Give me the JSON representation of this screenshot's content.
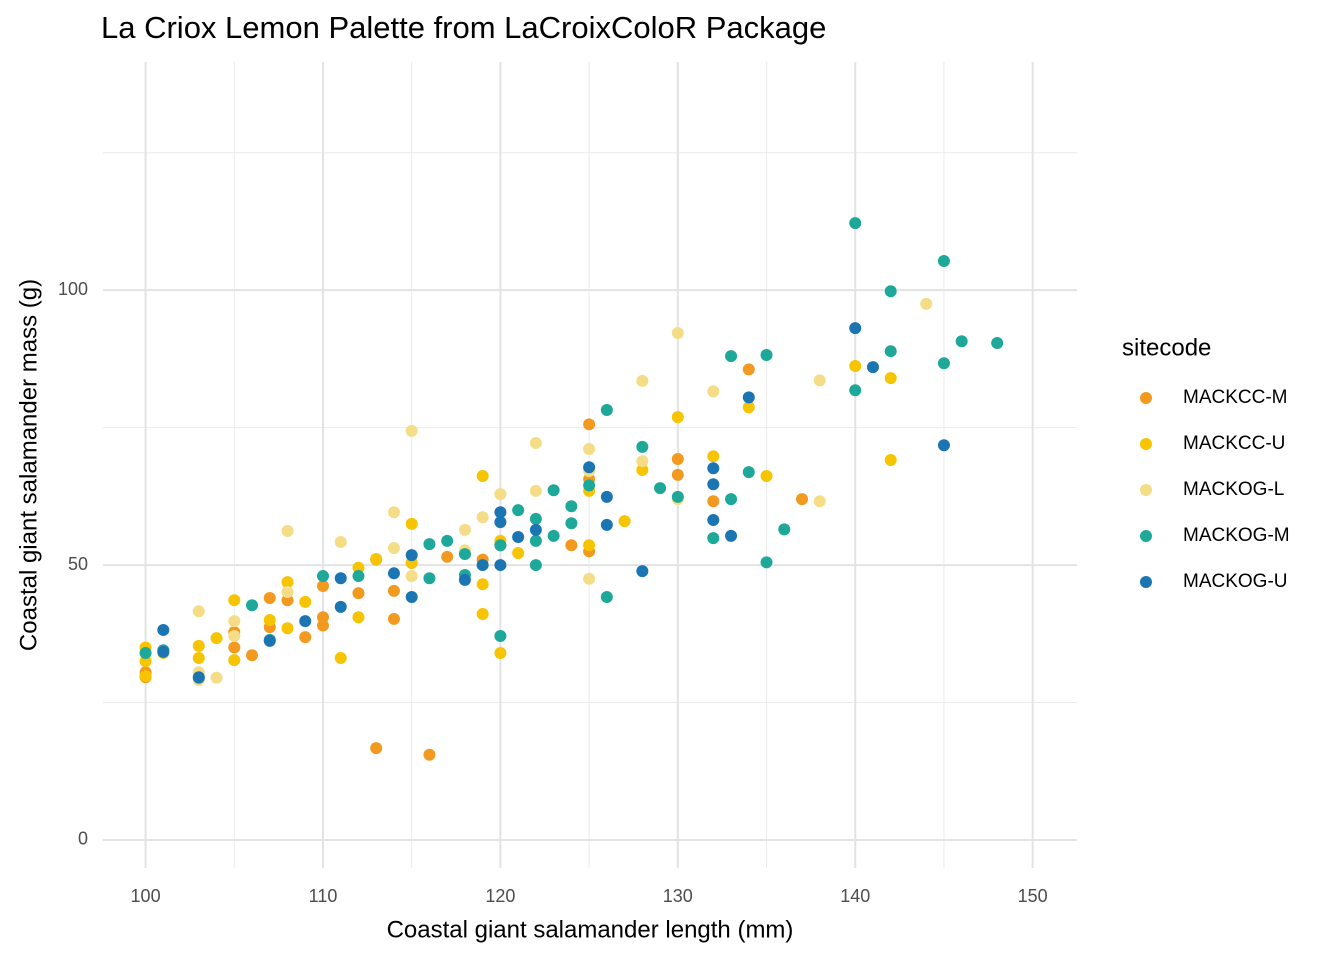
{
  "chart_data": {
    "type": "scatter",
    "title": "La Criox Lemon Palette from LaCroixColoR Package",
    "x_label": "Coastal giant salamander length (mm)",
    "y_label": "Coastal giant salamander mass (g)",
    "legend_title": "sitecode",
    "legend_position": "right",
    "grid": true,
    "xlim": [
      97.6,
      152.5
    ],
    "ylim": [
      -5.1,
      141.5
    ],
    "xticks": [
      100,
      110,
      120,
      130,
      140,
      150
    ],
    "yticks": [
      0,
      50,
      100
    ],
    "xminor": [
      105,
      115,
      125,
      135,
      145
    ],
    "yminor": [
      25,
      75,
      125
    ],
    "series": [
      {
        "name": "MACKCC-M",
        "color": "#f19a1f",
        "x": [
          100,
          100,
          105,
          105,
          106,
          107,
          107,
          108,
          109,
          110,
          110,
          110,
          112,
          113,
          114,
          114,
          113,
          116,
          117,
          119,
          120,
          124,
          125,
          125,
          125,
          130,
          130,
          132,
          134,
          137,
          115
        ],
        "values": [
          30.5,
          29.6,
          37.8,
          35,
          33.6,
          38.7,
          44,
          43.6,
          36.9,
          40.5,
          39,
          46.2,
          44.9,
          51,
          40.2,
          45.3,
          16.7,
          15.5,
          51.5,
          51,
          53.6,
          53.6,
          52.5,
          75.6,
          65.6,
          69.3,
          66.4,
          61.6,
          85.6,
          62,
          50.4
        ]
      },
      {
        "name": "MACKCC-U",
        "color": "#f6c400",
        "x": [
          100,
          100,
          100,
          101,
          103,
          103,
          104,
          105,
          105,
          107,
          108,
          108,
          109,
          111,
          112,
          112,
          113,
          115,
          115,
          119,
          119,
          119,
          120,
          121,
          125,
          125,
          127,
          128,
          130,
          132,
          134,
          135,
          140,
          142,
          142,
          120
        ],
        "values": [
          35,
          32.5,
          29.8,
          34,
          35.3,
          33.1,
          36.7,
          43.6,
          32.7,
          40,
          46.9,
          38.5,
          43.3,
          33.1,
          49.5,
          40.5,
          51.1,
          57.5,
          50.4,
          66.2,
          46.5,
          41.1,
          34,
          52.2,
          63.5,
          53.6,
          58,
          67.3,
          76.9,
          69.8,
          78.7,
          66.2,
          86.2,
          84,
          69.1,
          54.4
        ]
      },
      {
        "name": "MACKOG-L",
        "color": "#f4dd86",
        "x": [
          103,
          103,
          103,
          104,
          105,
          105,
          108,
          108,
          111,
          114,
          114,
          115,
          115,
          118,
          119,
          120,
          122,
          122,
          125,
          125,
          125,
          128,
          128,
          130,
          130,
          132,
          138,
          138,
          144,
          118
        ],
        "values": [
          41.6,
          30.5,
          29.1,
          29.5,
          39.8,
          37.1,
          56.2,
          45.1,
          54.2,
          59.6,
          53.1,
          74.4,
          48,
          56.4,
          58.7,
          62.9,
          72.2,
          63.5,
          71.1,
          47.5,
          67.1,
          68.9,
          83.5,
          92.2,
          62,
          81.6,
          83.6,
          61.6,
          97.5,
          52.7
        ]
      },
      {
        "name": "MACKOG-M",
        "color": "#1da89a",
        "x": [
          100,
          101,
          103,
          106,
          107,
          110,
          112,
          116,
          116,
          117,
          118,
          118,
          120,
          120,
          121,
          122,
          122,
          122,
          123,
          123,
          124,
          124,
          125,
          126,
          126,
          128,
          129,
          130,
          132,
          133,
          133,
          134,
          135,
          135,
          136,
          140,
          140,
          142,
          142,
          145,
          145,
          146,
          148
        ],
        "values": [
          34,
          34.5,
          29.5,
          42.7,
          36.4,
          48,
          48,
          53.8,
          47.6,
          54.4,
          52,
          48.2,
          37.1,
          53.6,
          60,
          58.4,
          54.4,
          50,
          63.6,
          55.3,
          60.7,
          57.6,
          64.5,
          78.2,
          44.2,
          71.5,
          64,
          62.4,
          54.9,
          88,
          62,
          66.9,
          88.2,
          50.5,
          56.5,
          112.2,
          81.8,
          99.8,
          88.9,
          105.3,
          86.7,
          90.7,
          90.4
        ]
      },
      {
        "name": "MACKOG-U",
        "color": "#1b75b3",
        "x": [
          101,
          101,
          103,
          107,
          109,
          111,
          111,
          114,
          115,
          115,
          118,
          119,
          120,
          120,
          120,
          121,
          122,
          125,
          126,
          126,
          128,
          132,
          132,
          132,
          133,
          134,
          140,
          141,
          145
        ],
        "values": [
          38.2,
          34.2,
          29.6,
          36.2,
          39.8,
          47.6,
          42.4,
          48.5,
          51.8,
          44.2,
          47.3,
          50,
          59.6,
          57.8,
          50,
          55.1,
          56.4,
          67.8,
          57.3,
          62.4,
          48.9,
          67.6,
          64.7,
          58.2,
          55.3,
          80.5,
          93.1,
          86,
          71.8
        ]
      }
    ]
  }
}
